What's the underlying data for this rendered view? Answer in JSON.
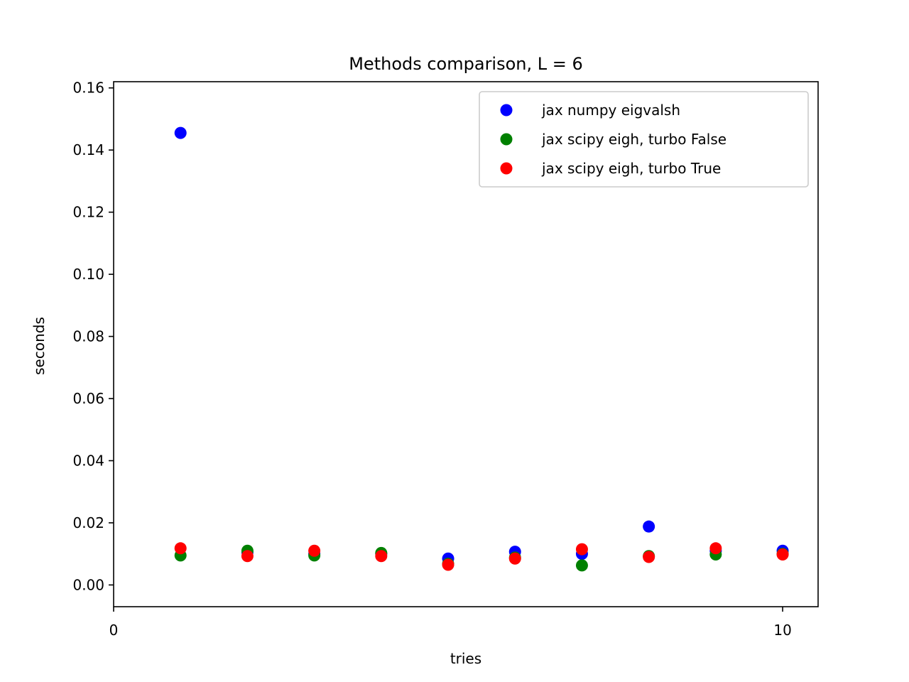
{
  "chart_data": {
    "type": "scatter",
    "title": "Methods comparison, L = 6",
    "xlabel": "tries",
    "ylabel": "seconds",
    "xlim": [
      0,
      10.53
    ],
    "ylim": [
      -0.007,
      0.162
    ],
    "xticks": [
      0,
      10
    ],
    "xtick_labels": [
      "0",
      "10"
    ],
    "yticks": [
      0.0,
      0.02,
      0.04,
      0.06,
      0.08,
      0.1,
      0.12,
      0.14,
      0.16
    ],
    "ytick_labels": [
      "0.00",
      "0.02",
      "0.04",
      "0.06",
      "0.08",
      "0.10",
      "0.12",
      "0.14",
      "0.16"
    ],
    "legend_position": "top-right",
    "grid": false,
    "series": [
      {
        "name": "jax numpy eigvalsh",
        "color": "#0000ff",
        "x": [
          1,
          2,
          3,
          4,
          5,
          6,
          7,
          8,
          9,
          10
        ],
        "y": [
          0.1455,
          0.0105,
          0.01,
          0.01,
          0.0085,
          0.0107,
          0.01,
          0.0188,
          0.011,
          0.011
        ]
      },
      {
        "name": "jax scipy eigh, turbo False",
        "color": "#008000",
        "x": [
          1,
          2,
          3,
          4,
          5,
          6,
          7,
          8,
          9,
          10
        ],
        "y": [
          0.0095,
          0.011,
          0.0095,
          0.0103,
          0.0068,
          0.0088,
          0.0063,
          0.0093,
          0.0098,
          0.01
        ]
      },
      {
        "name": "jax scipy eigh, turbo True",
        "color": "#ff0000",
        "x": [
          1,
          2,
          3,
          4,
          5,
          6,
          7,
          8,
          9,
          10
        ],
        "y": [
          0.0118,
          0.0093,
          0.011,
          0.0093,
          0.0065,
          0.0085,
          0.0115,
          0.009,
          0.0118,
          0.0098
        ]
      }
    ]
  }
}
